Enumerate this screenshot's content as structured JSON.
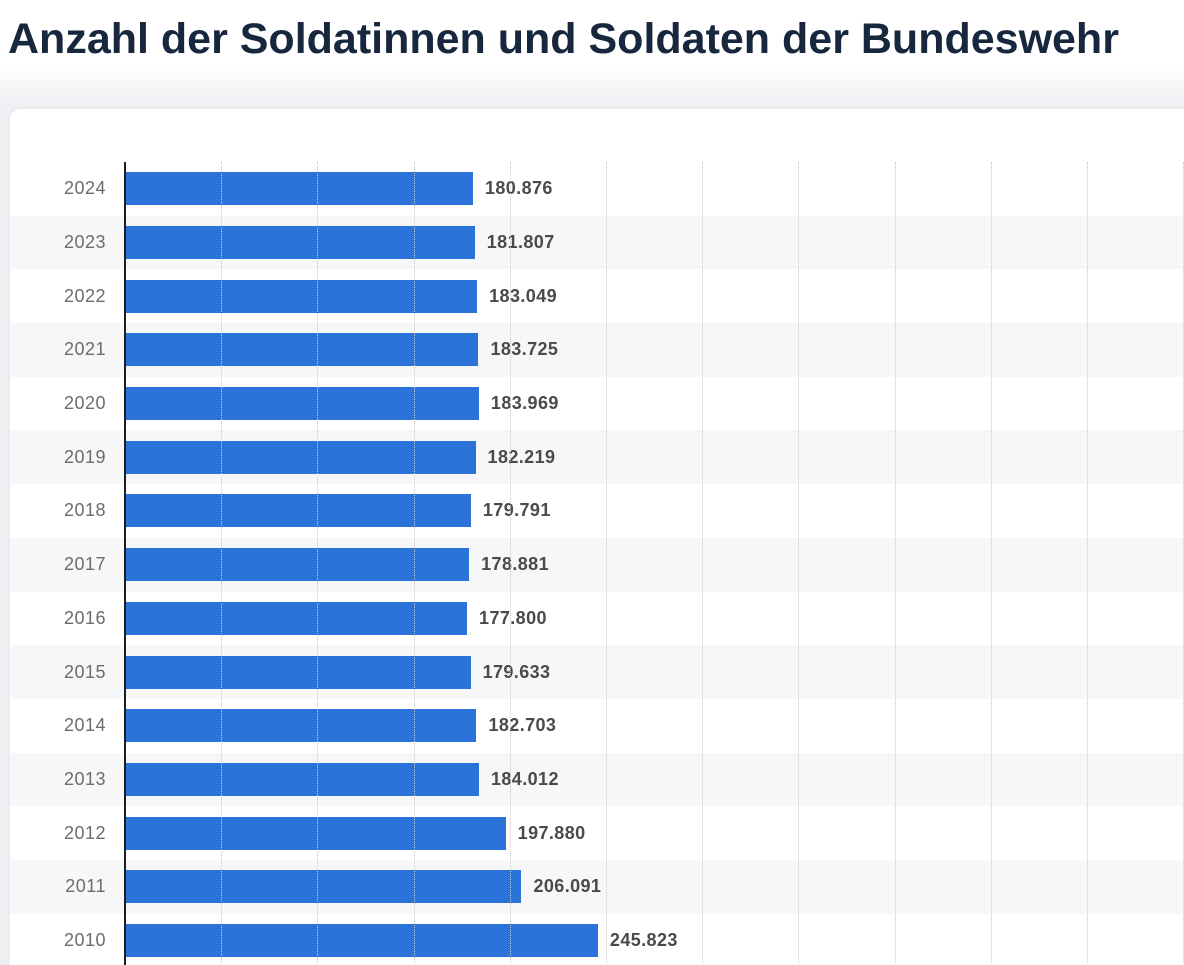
{
  "page": {
    "title": "Anzahl der Soldatinnen und Soldaten der Bundeswehr"
  },
  "chart_data": {
    "type": "bar",
    "orientation": "horizontal",
    "title": "Anzahl der Soldatinnen und Soldaten der Bundeswehr",
    "categories": [
      "2024",
      "2023",
      "2022",
      "2021",
      "2020",
      "2019",
      "2018",
      "2017",
      "2016",
      "2015",
      "2014",
      "2013",
      "2012",
      "2011",
      "2010"
    ],
    "values": [
      180876,
      181807,
      183049,
      183725,
      183969,
      182219,
      179791,
      178881,
      177800,
      179633,
      182703,
      184012,
      197880,
      206091,
      245823
    ],
    "value_labels": [
      "180.876",
      "181.807",
      "183.049",
      "183.725",
      "183.969",
      "182.219",
      "179.791",
      "178.881",
      "177.800",
      "179.633",
      "182.703",
      "184.012",
      "197.880",
      "206.091",
      "245.823"
    ],
    "xlabel": "",
    "ylabel": "",
    "xlim": [
      0,
      551000
    ],
    "gridline_step": 50000,
    "grid": true,
    "legend": false,
    "zebra_striping": true
  },
  "colors": {
    "title": "#16273e",
    "bar": "#2b72d9",
    "year_label": "#6c6c6c",
    "value_label": "#4a4a4a",
    "zebra_row": "#f6f7f8",
    "gridline": "#c9c9c9",
    "axis_line": "#1d1d1d",
    "page_background": "#edeff2",
    "card_background": "#ffffff"
  }
}
